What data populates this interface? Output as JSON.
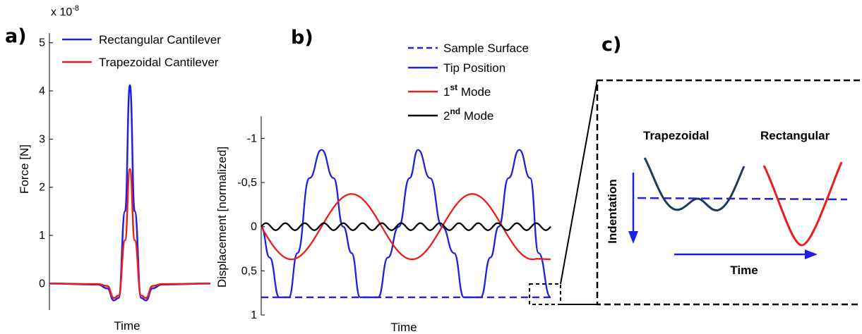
{
  "panel_labels": {
    "a": "a)",
    "b": "b)",
    "c": "c)"
  },
  "colors": {
    "blue": "#1f1fe6",
    "red": "#ee1b1b",
    "black": "#000000",
    "navy": "#1f3a5a"
  },
  "chart_data": [
    {
      "type": "line",
      "panel": "a)",
      "title": "",
      "xlabel": "Time",
      "ylabel": "Force [N]",
      "exponent_label": "x 10",
      "exponent_power": "-8",
      "yticks": [
        "0",
        "1",
        "2",
        "3",
        "4",
        "5"
      ],
      "ylim": [
        -0.55,
        5.2
      ],
      "xlim": [
        0,
        1
      ],
      "series": [
        {
          "name": "Rectangular Cantilever",
          "color": "#1f1fe6",
          "x": [
            0,
            0.3,
            0.36,
            0.4,
            0.43,
            0.47,
            0.5,
            0.53,
            0.57,
            0.6,
            0.64,
            0.7,
            1
          ],
          "values": [
            0,
            -0.02,
            -0.1,
            -0.35,
            -0.3,
            1.5,
            4.12,
            1.5,
            -0.3,
            -0.35,
            -0.1,
            -0.02,
            0
          ]
        },
        {
          "name": "Trapezoidal Cantilever",
          "color": "#ee1b1b",
          "x": [
            0,
            0.3,
            0.36,
            0.4,
            0.43,
            0.47,
            0.5,
            0.53,
            0.57,
            0.6,
            0.64,
            0.7,
            1
          ],
          "values": [
            0,
            -0.01,
            -0.05,
            -0.3,
            -0.25,
            0.9,
            2.38,
            0.9,
            -0.25,
            -0.3,
            -0.05,
            -0.01,
            0
          ]
        }
      ]
    },
    {
      "type": "line",
      "panel": "b)",
      "title": "",
      "xlabel": "Time",
      "ylabel": "Displacement [normalized]",
      "yticks": [
        "-1",
        "-0,5",
        "0",
        "0,5",
        "1"
      ],
      "ylim": [
        -1.25,
        1
      ],
      "y_inverted": true,
      "xlim": [
        0,
        2.4
      ],
      "series": [
        {
          "name": "Sample Surface",
          "color": "#1f1fe6",
          "dash": true,
          "x": [
            0,
            2.4
          ],
          "values": [
            0.8,
            0.8
          ]
        },
        {
          "name": "Tip Position",
          "color": "#1f1fe6",
          "x": [
            0,
            0.07,
            0.15,
            0.23,
            0.3,
            0.4,
            0.5,
            0.6,
            0.68,
            0.75,
            0.82,
            0.9,
            0.97,
            1.05,
            1.14,
            1.23,
            1.3,
            1.4,
            1.5,
            1.6,
            1.68,
            1.75,
            1.82,
            1.9,
            1.97,
            2.05,
            2.14,
            2.23,
            2.3,
            2.4
          ],
          "values": [
            0,
            0.35,
            0.8,
            0.8,
            0.3,
            -0.55,
            -0.87,
            -0.55,
            0,
            0.3,
            0.8,
            0.8,
            0.8,
            0.35,
            0,
            -0.55,
            -0.87,
            -0.55,
            0,
            0.3,
            0.8,
            0.8,
            0.8,
            0.35,
            0,
            -0.55,
            -0.87,
            -0.55,
            0.3,
            0.8
          ]
        },
        {
          "name": "1st Mode",
          "color": "#ee1b1b",
          "x": [
            0,
            0.25,
            0.5,
            0.75,
            1.0,
            1.25,
            1.5,
            1.75,
            2.0,
            2.25,
            2.4
          ],
          "values": [
            0,
            0.37,
            0,
            -0.37,
            0,
            0.37,
            0,
            -0.37,
            0,
            0.37,
            0.37
          ]
        },
        {
          "name": "2nd Mode",
          "color": "#000000",
          "amplitude": 0.04,
          "cycles": 15,
          "x": [
            0,
            2.4
          ],
          "values": [
            0,
            0
          ]
        }
      ]
    }
  ],
  "legend_a": [
    "Rectangular Cantilever",
    "Trapezoidal Cantilever"
  ],
  "legend_b": [
    {
      "text": "Sample Surface",
      "sup": ""
    },
    {
      "text": "Tip Position",
      "sup": ""
    },
    {
      "text": "1",
      "sup": "st",
      "suffix": " Mode"
    },
    {
      "text": "2",
      "sup": "nd",
      "suffix": " Mode"
    }
  ],
  "inset_c": {
    "label_left": "Trapezoidal",
    "label_right": "Rectangular",
    "axis_vertical": "Indentation",
    "axis_horizontal": "Time"
  }
}
